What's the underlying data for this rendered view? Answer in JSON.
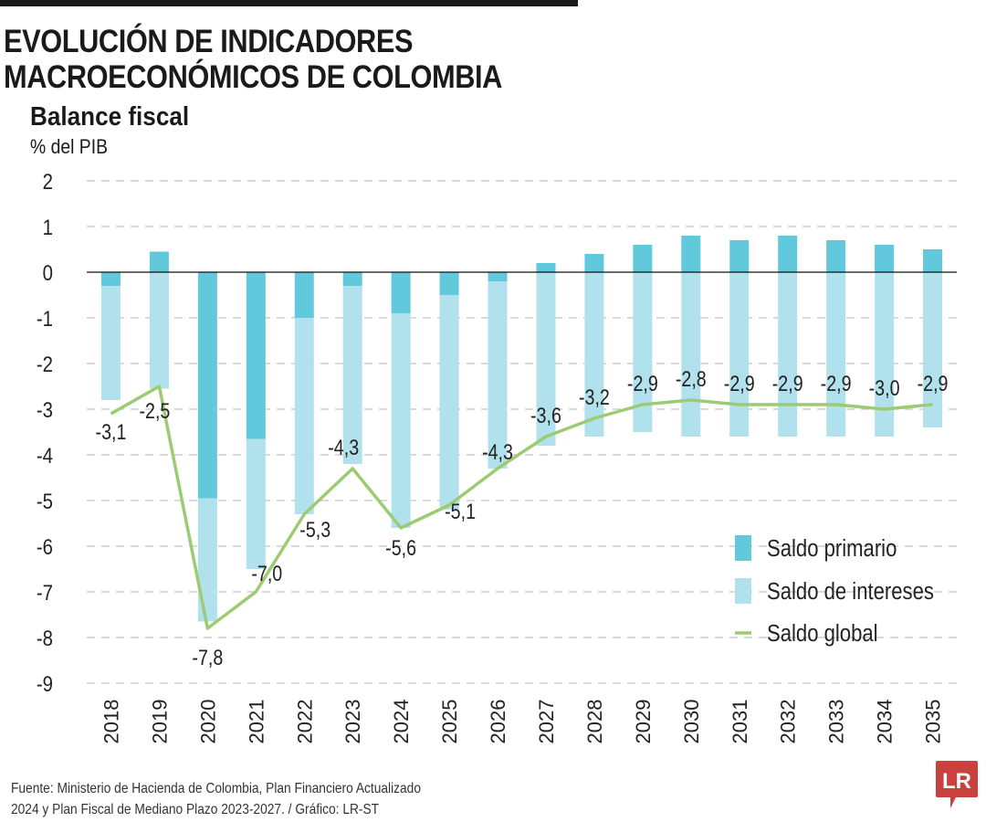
{
  "header": {
    "title_line1": "EVOLUCIÓN DE INDICADORES",
    "title_line2": "MACROECONÓMICOS DE COLOMBIA",
    "subtitle": "Balance fiscal",
    "unit": "% del PIB"
  },
  "footer": {
    "source_line1": "Fuente: Ministerio de Hacienda de Colombia, Plan Financiero Actualizado",
    "source_line2": "2024 y Plan Fiscal de Mediano Plazo 2023-2027. / Gráfico: LR-ST",
    "logo": "LR"
  },
  "chart_data": {
    "type": "bar",
    "stacked": true,
    "title": "Balance fiscal",
    "ylabel": "% del PIB",
    "ylim": [
      -9,
      2
    ],
    "yticks": [
      2,
      1,
      0,
      -1,
      -2,
      -3,
      -4,
      -5,
      -6,
      -7,
      -8,
      -9
    ],
    "grid": true,
    "legend_position": "bottom-right",
    "categories": [
      "2018",
      "2019",
      "2020",
      "2021",
      "2022",
      "2023",
      "2024",
      "2025",
      "2026",
      "2027",
      "2028",
      "2029",
      "2030",
      "2031",
      "2032",
      "2033",
      "2034",
      "2035"
    ],
    "series": [
      {
        "name": "Saldo primario",
        "type": "bar",
        "color": "#62c8dc",
        "values": [
          -0.3,
          0.45,
          -4.95,
          -3.65,
          -1.0,
          -0.3,
          -0.9,
          -0.5,
          -0.2,
          0.2,
          0.4,
          0.6,
          0.8,
          0.7,
          0.8,
          0.7,
          0.6,
          0.5
        ]
      },
      {
        "name": "Saldo de intereses",
        "type": "bar",
        "color": "#b1e1ed",
        "values": [
          -2.5,
          -2.55,
          -2.7,
          -2.85,
          -4.3,
          -3.9,
          -4.7,
          -4.7,
          -4.1,
          -3.8,
          -3.6,
          -3.5,
          -3.6,
          -3.6,
          -3.6,
          -3.6,
          -3.6,
          -3.4
        ]
      },
      {
        "name": "Saldo global",
        "type": "line",
        "color": "#9dcb74",
        "values": [
          -3.1,
          -2.5,
          -7.8,
          -7.0,
          -5.3,
          -4.3,
          -5.6,
          -5.1,
          -4.3,
          -3.6,
          -3.2,
          -2.9,
          -2.8,
          -2.9,
          -2.9,
          -2.9,
          -3.0,
          -2.9
        ],
        "labels": [
          "-3,1",
          "-2,5",
          "-7,8",
          "-7,0",
          "-5,3",
          "-4,3",
          "-5,6",
          "-5,1",
          "-4,3",
          "-3,6",
          "-3,2",
          "-2,9",
          "-2,8",
          "-2,9",
          "-2,9",
          "-2,9",
          "-3,0",
          "-2,9"
        ]
      }
    ]
  }
}
